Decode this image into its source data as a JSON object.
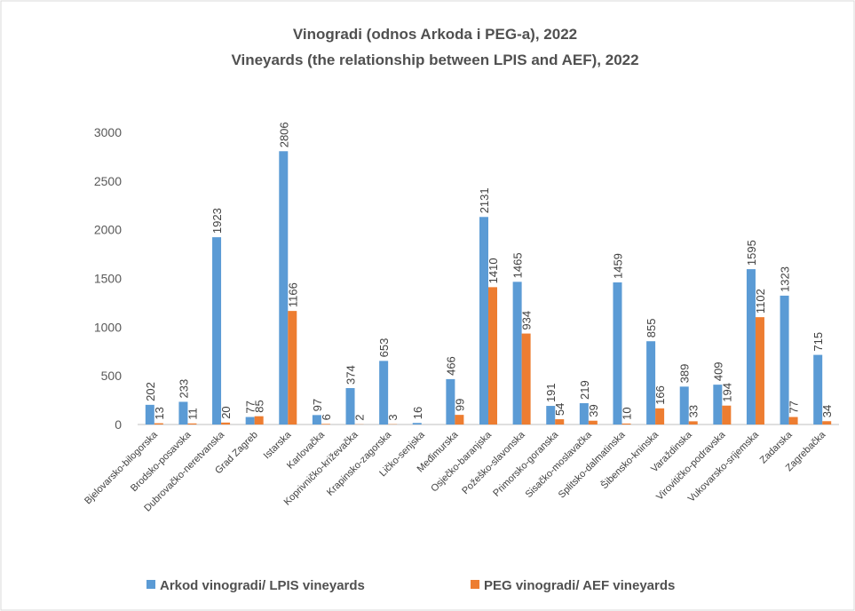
{
  "chart_data": {
    "type": "bar",
    "title": "Vinogradi (odnos Arkoda i PEG-a), 2022",
    "subtitle": "Vineyards (the relationship between LPIS and AEF), 2022",
    "categories": [
      "Bjelovarsko-bilogorska",
      "Brodsko-posavska",
      "Dubrovačko-neretvanska",
      "Grad Zagreb",
      "Istarska",
      "Karlovačka",
      "Koprivničko-križevačka",
      "Krapinsko-zagorska",
      "Ličko-senjska",
      "Međimurska",
      "Osječko-baranjska",
      "Požeško-slavonska",
      "Primorsko-goranska",
      "Sisačko-moslavačka",
      "Splitsko-dalmatinska",
      "Šibensko-kninska",
      "Varaždinska",
      "Virovitičko-podravska",
      "Vukovarsko-srijemska",
      "Zadarska",
      "Zagrebačka"
    ],
    "series": [
      {
        "name": "Arkod vinogradi/ LPIS vineyards",
        "color": "#5b9bd5",
        "values": [
          202,
          233,
          1923,
          77,
          2806,
          97,
          374,
          653,
          16,
          466,
          2131,
          1465,
          191,
          219,
          1459,
          855,
          389,
          409,
          1595,
          1323,
          715
        ]
      },
      {
        "name": "PEG vinogradi/ AEF vineyards",
        "color": "#ed7d31",
        "values": [
          13,
          11,
          20,
          85,
          1166,
          6,
          2,
          3,
          null,
          99,
          1410,
          934,
          54,
          39,
          10,
          166,
          33,
          194,
          1102,
          77,
          34
        ]
      }
    ],
    "ylim": [
      0,
      3000
    ],
    "yticks": [
      0,
      500,
      1000,
      1500,
      2000,
      2500,
      3000
    ],
    "grid": false,
    "legend": "bottom"
  }
}
